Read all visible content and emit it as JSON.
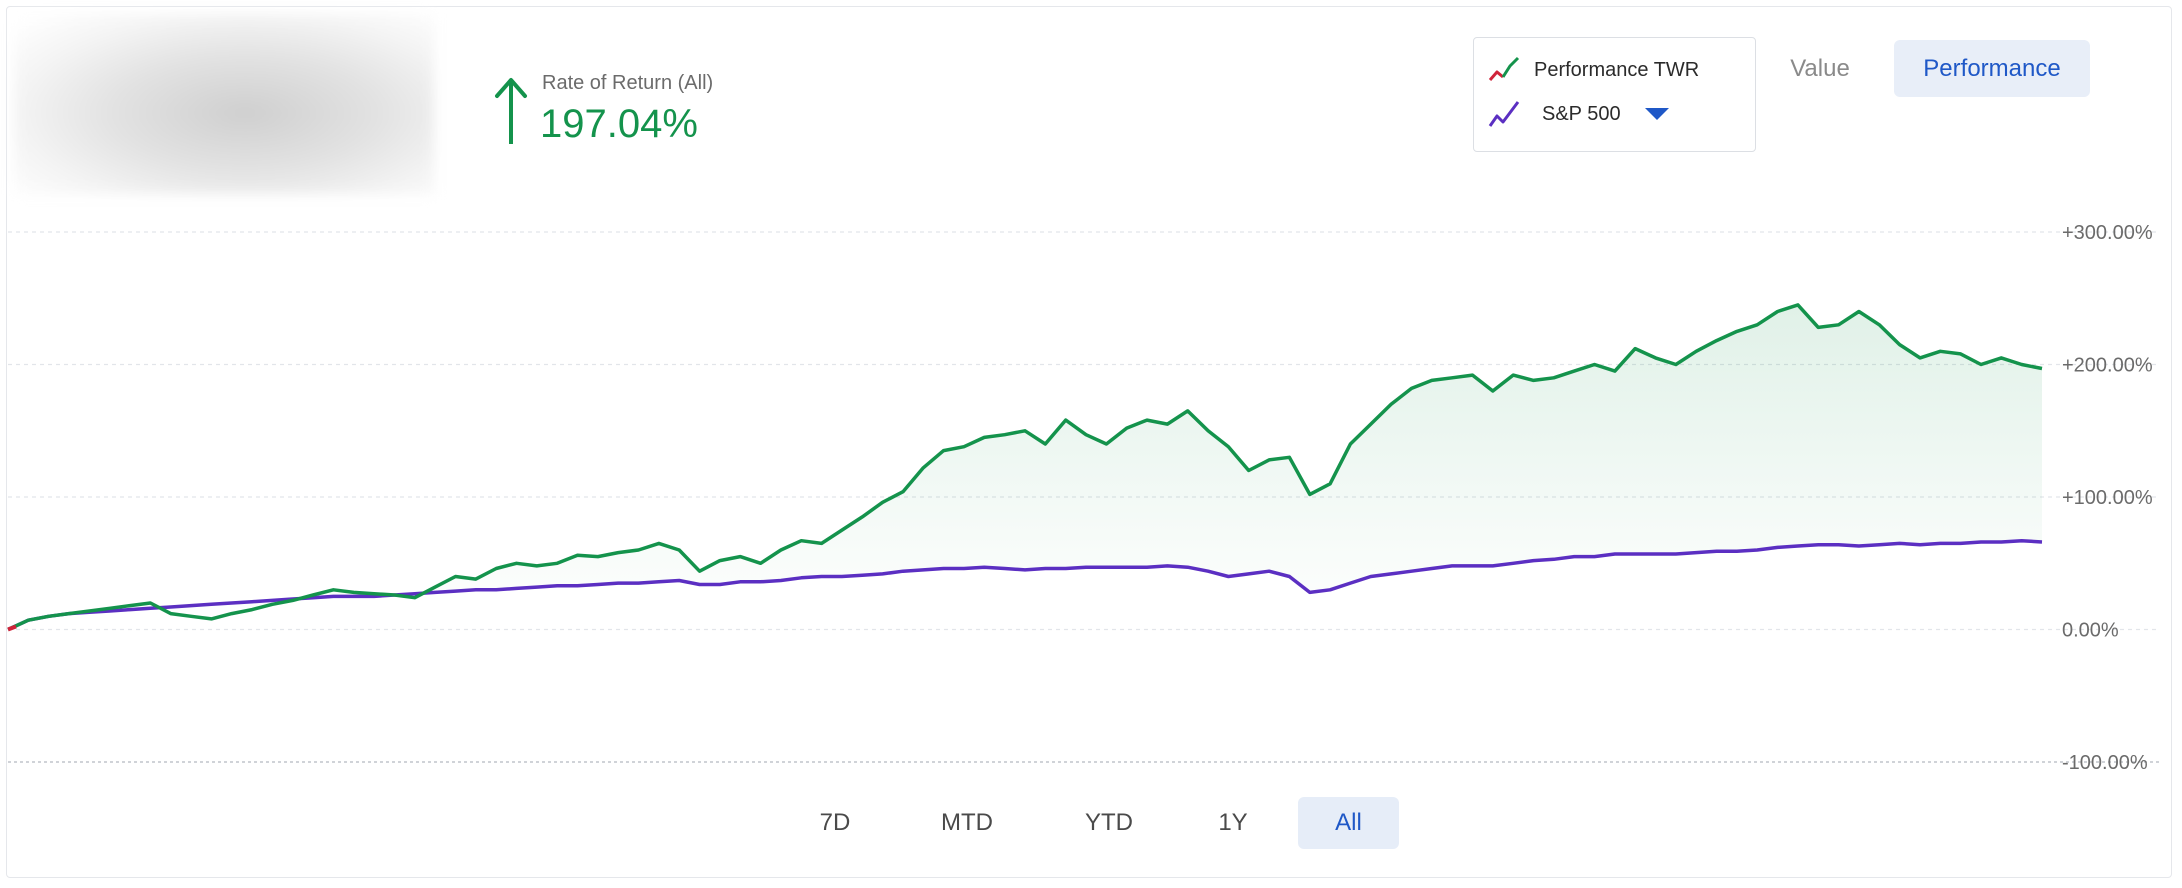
{
  "header": {
    "rate_label": "Rate of Return (All)",
    "rate_value": "197.04%"
  },
  "legend": {
    "items": [
      {
        "label": "Performance TWR",
        "icon": "line-chart-icon",
        "colors": [
          "#d0243a",
          "#14934c"
        ]
      },
      {
        "label": "S&P 500",
        "icon": "line-chart-icon",
        "colors": [
          "#5b2fc2"
        ]
      }
    ]
  },
  "view_toggle": {
    "value_label": "Value",
    "performance_label": "Performance",
    "active": "Performance"
  },
  "ranges": {
    "items": [
      "7D",
      "MTD",
      "YTD",
      "1Y",
      "All"
    ],
    "active": "All"
  },
  "colors": {
    "portfolio_line": "#14934c",
    "portfolio_start": "#d0243a",
    "benchmark_line": "#5b2fc2",
    "accent": "#1f58c7",
    "positive": "#14934c"
  },
  "chart_data": {
    "type": "line",
    "ylim": [
      -100,
      300
    ],
    "y_tick_labels": [
      "+300.00%",
      "+200.00%",
      "+100.00%",
      "0.00%",
      "-100.00%"
    ],
    "y_ticks": [
      300,
      200,
      100,
      0,
      -100
    ],
    "grid": true,
    "legend_position": "top-right",
    "x": [
      0,
      1,
      2,
      3,
      4,
      5,
      6,
      7,
      8,
      9,
      10,
      11,
      12,
      13,
      14,
      15,
      16,
      17,
      18,
      19,
      20,
      21,
      22,
      23,
      24,
      25,
      26,
      27,
      28,
      29,
      30,
      31,
      32,
      33,
      34,
      35,
      36,
      37,
      38,
      39,
      40,
      41,
      42,
      43,
      44,
      45,
      46,
      47,
      48,
      49,
      50,
      51,
      52,
      53,
      54,
      55,
      56,
      57,
      58,
      59,
      60,
      61,
      62,
      63,
      64,
      65,
      66,
      67,
      68,
      69,
      70,
      71,
      72,
      73,
      74,
      75,
      76,
      77,
      78,
      79,
      80,
      81,
      82,
      83,
      84,
      85,
      86,
      87,
      88,
      89,
      90,
      91,
      92,
      93,
      94,
      95,
      96,
      97,
      98,
      99,
      100
    ],
    "series": [
      {
        "name": "Performance TWR",
        "values": [
          0,
          7,
          10,
          12,
          14,
          16,
          18,
          20,
          12,
          10,
          8,
          12,
          15,
          19,
          22,
          26,
          30,
          28,
          27,
          26,
          24,
          32,
          40,
          38,
          46,
          50,
          48,
          50,
          56,
          55,
          58,
          60,
          65,
          60,
          44,
          52,
          55,
          50,
          60,
          67,
          65,
          75,
          85,
          96,
          104,
          122,
          135,
          138,
          145,
          147,
          150,
          140,
          158,
          147,
          140,
          152,
          158,
          155,
          165,
          150,
          138,
          120,
          128,
          130,
          102,
          110,
          140,
          155,
          170,
          182,
          188,
          190,
          192,
          180,
          192,
          188,
          190,
          195,
          200,
          195,
          212,
          205,
          200,
          210,
          218,
          225,
          230,
          240,
          245,
          228,
          230,
          240,
          230,
          215,
          205,
          210,
          208,
          200,
          205,
          200,
          197
        ]
      },
      {
        "name": "S&P 500",
        "values": [
          0,
          7,
          10,
          12,
          13,
          14,
          15,
          16,
          17,
          18,
          19,
          20,
          21,
          22,
          23,
          24,
          25,
          25,
          25,
          26,
          27,
          28,
          29,
          30,
          30,
          31,
          32,
          33,
          33,
          34,
          35,
          35,
          36,
          37,
          34,
          34,
          36,
          36,
          37,
          39,
          40,
          40,
          41,
          42,
          44,
          45,
          46,
          46,
          47,
          46,
          45,
          46,
          46,
          47,
          47,
          47,
          47,
          48,
          47,
          44,
          40,
          42,
          44,
          40,
          28,
          30,
          35,
          40,
          42,
          44,
          46,
          48,
          48,
          48,
          50,
          52,
          53,
          55,
          55,
          57,
          57,
          57,
          57,
          58,
          59,
          59,
          60,
          62,
          63,
          64,
          64,
          63,
          64,
          65,
          64,
          65,
          65,
          66,
          66,
          67,
          66
        ]
      }
    ]
  }
}
